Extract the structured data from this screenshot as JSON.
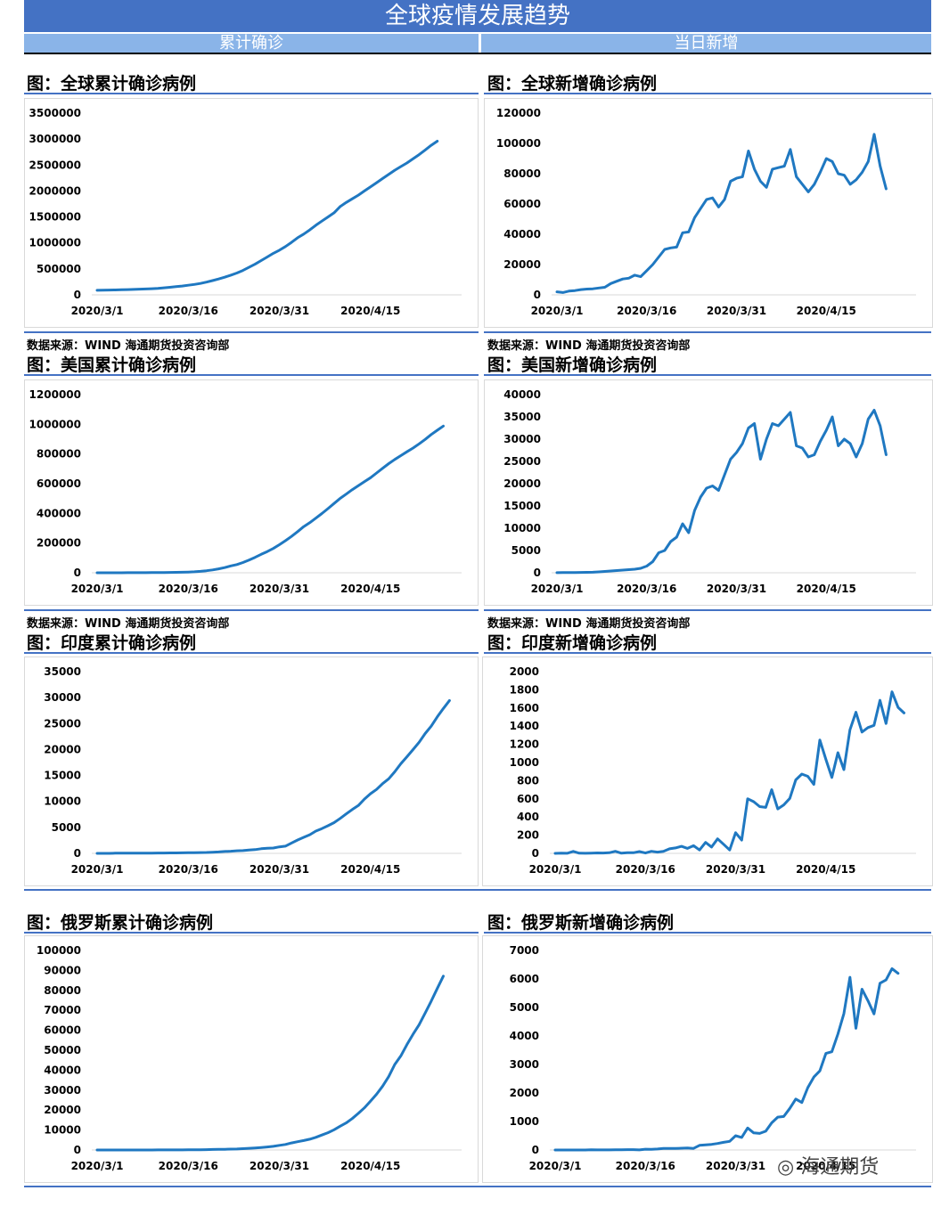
{
  "header": {
    "title": "全球疫情发展趋势",
    "left_sub": "累计确诊",
    "right_sub": "当日新增"
  },
  "source_text": "数据来源：WIND 海通期货投资咨询部",
  "watermark": "海通期货",
  "colors": {
    "line": "#1f78c1",
    "banner": "#4472c4",
    "sub": "#8ab4e8"
  },
  "chart_data": [
    {
      "id": "global-cum",
      "type": "line",
      "title": "图：全球累计确诊病例",
      "xticks": [
        "2020/3/1",
        "2020/3/16",
        "2020/3/31",
        "2020/4/15"
      ],
      "yticks": [
        0,
        500000,
        1000000,
        1500000,
        2000000,
        2500000,
        3000000,
        3500000
      ],
      "ylim": [
        0,
        3500000
      ],
      "start": "2020-03-01",
      "grid": false,
      "values": [
        88000,
        90000,
        93000,
        95000,
        98000,
        101000,
        105000,
        109000,
        114000,
        119000,
        126000,
        135000,
        145000,
        157000,
        170000,
        185000,
        200000,
        220000,
        245000,
        275000,
        305000,
        340000,
        380000,
        420000,
        470000,
        530000,
        590000,
        660000,
        730000,
        800000,
        860000,
        930000,
        1010000,
        1100000,
        1170000,
        1250000,
        1340000,
        1420000,
        1500000,
        1580000,
        1700000,
        1780000,
        1850000,
        1920000,
        2000000,
        2080000,
        2160000,
        2240000,
        2320000,
        2400000,
        2470000,
        2540000,
        2620000,
        2700000,
        2790000,
        2880000,
        2960000
      ]
    },
    {
      "id": "global-new",
      "type": "line",
      "title": "图：全球新增确诊病例",
      "xticks": [
        "2020/3/1",
        "2020/3/16",
        "2020/3/31",
        "2020/4/15"
      ],
      "yticks": [
        0,
        20000,
        40000,
        60000,
        80000,
        100000,
        120000
      ],
      "ylim": [
        0,
        120000
      ],
      "start": "2020-03-01",
      "grid": false,
      "values": [
        2000,
        1500,
        2500,
        2800,
        3500,
        3800,
        4000,
        4500,
        5000,
        7500,
        9000,
        10500,
        11000,
        13000,
        12000,
        16000,
        20000,
        25000,
        30000,
        31000,
        31500,
        41000,
        41500,
        51000,
        57000,
        63000,
        64000,
        58000,
        63000,
        75000,
        77000,
        78000,
        95000,
        83000,
        75000,
        71000,
        83000,
        84000,
        85000,
        96000,
        78000,
        73000,
        68000,
        73000,
        81000,
        90000,
        88000,
        80000,
        79000,
        73000,
        76000,
        81000,
        88000,
        106000,
        85000,
        70000
      ]
    },
    {
      "id": "us-cum",
      "type": "line",
      "title": "图：美国累计确诊病例",
      "xticks": [
        "2020/3/1",
        "2020/3/16",
        "2020/3/31",
        "2020/4/15"
      ],
      "yticks": [
        0,
        200000,
        400000,
        600000,
        800000,
        1000000,
        1200000
      ],
      "ylim": [
        0,
        1200000
      ],
      "start": "2020-03-01",
      "grid": false,
      "values": [
        70,
        100,
        120,
        160,
        220,
        320,
        440,
        560,
        750,
        1000,
        1300,
        1700,
        2200,
        2900,
        3600,
        4700,
        6500,
        9400,
        14000,
        19500,
        26700,
        35000,
        46000,
        55000,
        69000,
        86000,
        104000,
        124000,
        143000,
        164000,
        189000,
        216000,
        245000,
        277000,
        311000,
        337000,
        368000,
        399000,
        432000,
        467000,
        501000,
        530000,
        560000,
        587000,
        614000,
        640000,
        672000,
        704000,
        735000,
        763000,
        789000,
        815000,
        840000,
        868000,
        898000,
        931000,
        960000,
        988000
      ]
    },
    {
      "id": "us-new",
      "type": "line",
      "title": "图：美国新增确诊病例",
      "xticks": [
        "2020/3/1",
        "2020/3/16",
        "2020/3/31",
        "2020/4/15"
      ],
      "yticks": [
        0,
        5000,
        10000,
        15000,
        20000,
        25000,
        30000,
        35000,
        40000
      ],
      "ylim": [
        0,
        40000
      ],
      "start": "2020-03-01",
      "grid": false,
      "values": [
        20,
        30,
        40,
        60,
        80,
        100,
        120,
        200,
        300,
        400,
        500,
        600,
        700,
        800,
        1000,
        1500,
        2500,
        4500,
        5000,
        7000,
        8000,
        11000,
        9000,
        14000,
        17000,
        19000,
        19500,
        18500,
        22000,
        25500,
        27000,
        29000,
        32500,
        33500,
        25500,
        30000,
        33500,
        33000,
        34500,
        36000,
        28500,
        28000,
        26000,
        26500,
        29500,
        32000,
        35000,
        28500,
        30000,
        29000,
        26000,
        29000,
        34500,
        36500,
        33000,
        26500
      ]
    },
    {
      "id": "india-cum",
      "type": "line",
      "title": "图：印度累计确诊病例",
      "xticks": [
        "2020/3/1",
        "2020/3/16",
        "2020/3/31",
        "2020/4/15"
      ],
      "yticks": [
        0,
        5000,
        10000,
        15000,
        20000,
        25000,
        30000,
        35000
      ],
      "ylim": [
        0,
        35000
      ],
      "start": "2020-03-01",
      "grid": false,
      "values": [
        3,
        5,
        6,
        28,
        30,
        31,
        34,
        39,
        43,
        50,
        73,
        75,
        83,
        90,
        110,
        114,
        137,
        151,
        173,
        223,
        283,
        360,
        415,
        499,
        536,
        657,
        727,
        887,
        987,
        1024,
        1251,
        1397,
        1998,
        2567,
        3082,
        3588,
        4289,
        4778,
        5311,
        5916,
        6725,
        7598,
        8446,
        9205,
        10453,
        11487,
        12322,
        13430,
        14352,
        15712,
        17265,
        18600,
        19984,
        21393,
        23077,
        24506,
        26283,
        27890,
        29435
      ]
    },
    {
      "id": "india-new",
      "type": "line",
      "title": "图：印度新增确诊病例",
      "xticks": [
        "2020/3/1",
        "2020/3/16",
        "2020/3/31",
        "2020/4/15"
      ],
      "yticks": [
        0,
        200,
        400,
        600,
        800,
        1000,
        1200,
        1400,
        1600,
        1800,
        2000
      ],
      "ylim": [
        0,
        2000
      ],
      "start": "2020-03-01",
      "grid": false,
      "values": [
        0,
        2,
        1,
        22,
        2,
        1,
        3,
        5,
        4,
        7,
        23,
        2,
        8,
        7,
        20,
        4,
        23,
        14,
        22,
        50,
        60,
        77,
        55,
        84,
        37,
        121,
        70,
        160,
        100,
        37,
        227,
        146,
        601,
        569,
        515,
        506,
        701,
        489,
        533,
        605,
        809,
        873,
        848,
        759,
        1248,
        1034,
        835,
        1108,
        922,
        1360,
        1553,
        1335,
        1384,
        1409,
        1684,
        1429,
        1777,
        1607,
        1545
      ]
    },
    {
      "id": "russia-cum",
      "type": "line",
      "title": "图：俄罗斯累计确诊病例",
      "xticks": [
        "2020/3/1",
        "2020/3/16",
        "2020/3/31",
        "2020/4/15"
      ],
      "yticks": [
        0,
        10000,
        20000,
        30000,
        40000,
        50000,
        60000,
        70000,
        80000,
        90000,
        100000
      ],
      "ylim": [
        0,
        100000
      ],
      "start": "2020-03-01",
      "grid": false,
      "values": [
        2,
        2,
        3,
        3,
        4,
        4,
        10,
        13,
        17,
        20,
        28,
        34,
        45,
        59,
        63,
        90,
        114,
        147,
        199,
        253,
        306,
        367,
        438,
        495,
        658,
        840,
        1036,
        1264,
        1534,
        1836,
        2337,
        2777,
        3548,
        4149,
        4731,
        5389,
        6343,
        7497,
        8672,
        10131,
        11917,
        13584,
        15770,
        18328,
        21102,
        24490,
        27938,
        32008,
        36793,
        42853,
        47121,
        52763,
        57999,
        62773,
        68622,
        74588,
        80949,
        87147
      ]
    },
    {
      "id": "russia-new",
      "type": "line",
      "title": "图：俄罗斯新增确诊病例",
      "xticks": [
        "2020/3/1",
        "2020/3/16",
        "2020/3/31",
        "2020/4/15"
      ],
      "yticks": [
        0,
        1000,
        2000,
        3000,
        4000,
        5000,
        6000,
        7000
      ],
      "ylim": [
        0,
        7000
      ],
      "start": "2020-03-01",
      "grid": false,
      "values": [
        0,
        0,
        1,
        0,
        1,
        0,
        6,
        3,
        4,
        3,
        8,
        6,
        11,
        14,
        4,
        27,
        24,
        33,
        52,
        54,
        53,
        61,
        71,
        57,
        163,
        182,
        196,
        228,
        270,
        302,
        501,
        440,
        771,
        601,
        582,
        658,
        954,
        1154,
        1175,
        1459,
        1786,
        1667,
        2186,
        2558,
        2774,
        3388,
        3448,
        4070,
        4785,
        6060,
        4268,
        5642,
        5236,
        4774,
        5849,
        5966,
        6361,
        6198
      ]
    }
  ]
}
